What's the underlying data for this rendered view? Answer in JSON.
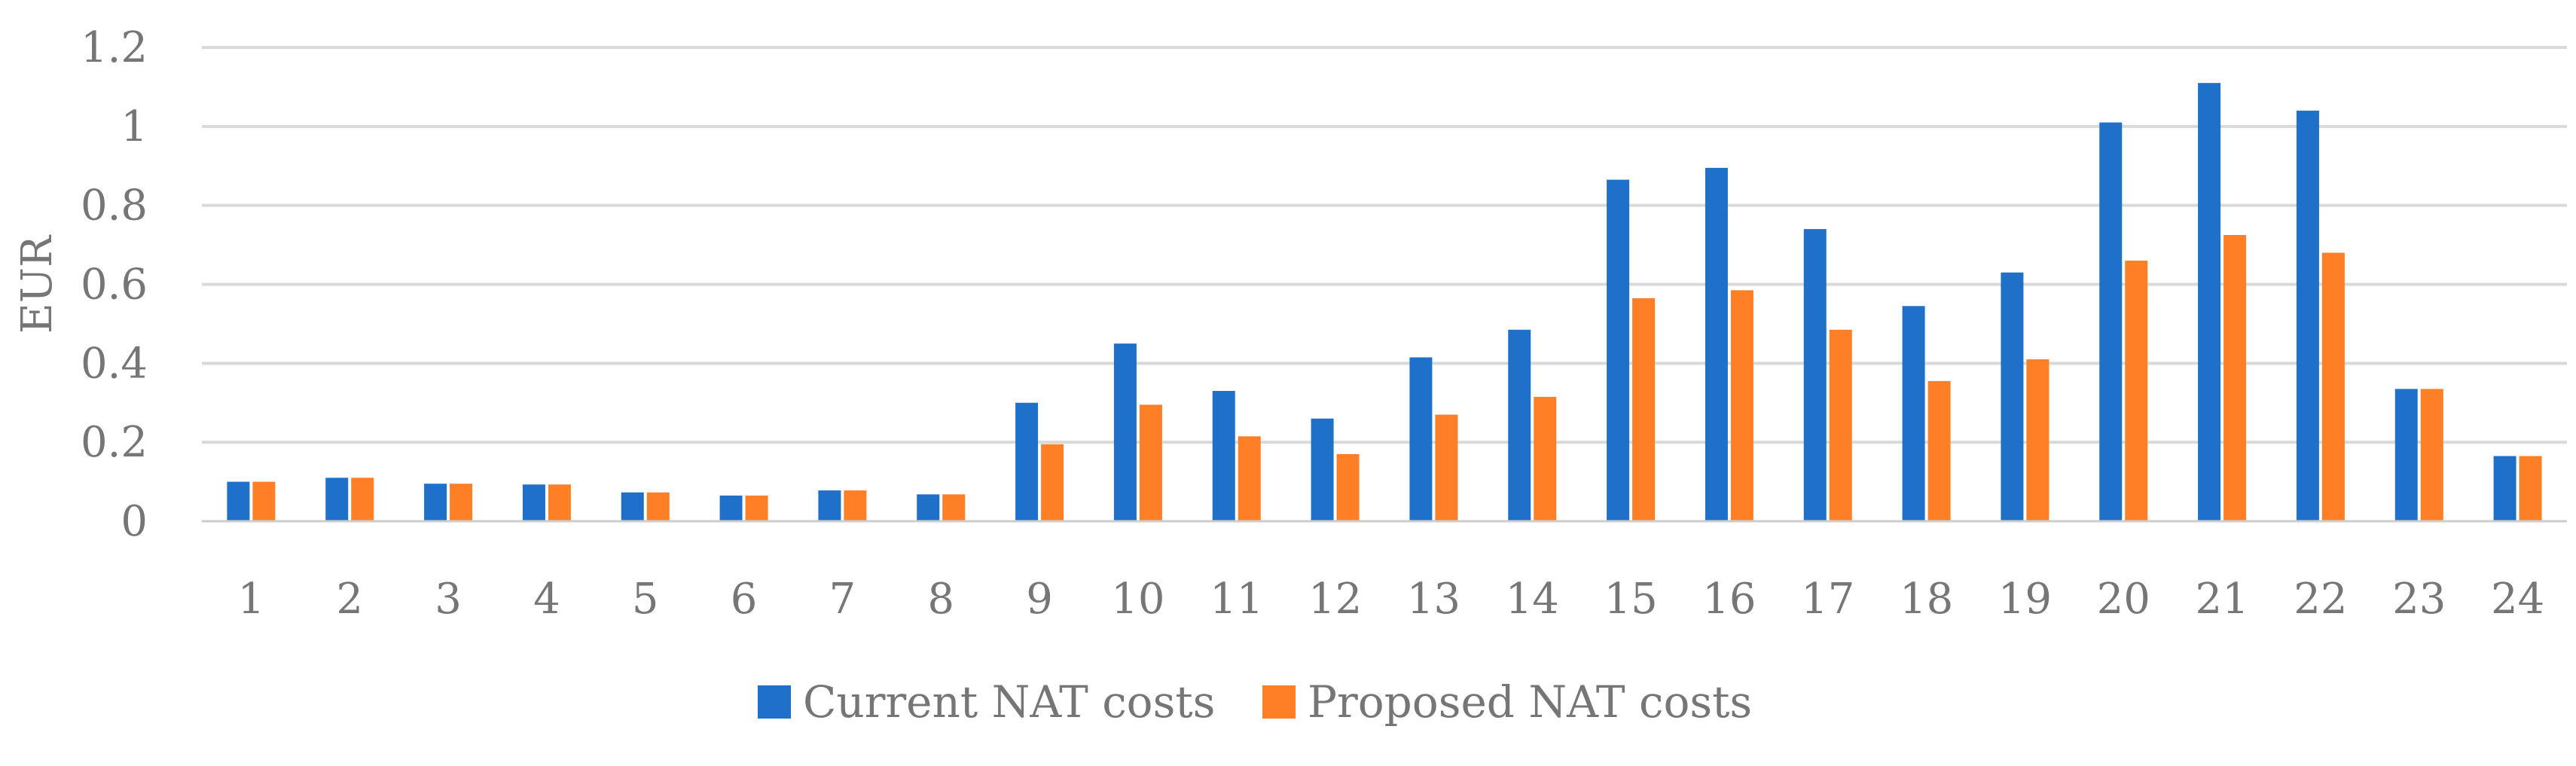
{
  "chart_data": {
    "type": "bar",
    "title": "",
    "xlabel": "",
    "ylabel": "EUR",
    "ylim": [
      0,
      1.2
    ],
    "yticks": [
      0,
      0.2,
      0.4,
      0.6,
      0.8,
      1,
      1.2
    ],
    "ytick_labels": [
      "0",
      "0.2",
      "0.4",
      "0.6",
      "0.8",
      "1",
      "1.2"
    ],
    "grid": true,
    "legend_position": "bottom",
    "categories": [
      "1",
      "2",
      "3",
      "4",
      "5",
      "6",
      "7",
      "8",
      "9",
      "10",
      "11",
      "12",
      "13",
      "14",
      "15",
      "16",
      "17",
      "18",
      "19",
      "20",
      "21",
      "22",
      "23",
      "24"
    ],
    "series": [
      {
        "name": "Current NAT costs",
        "color": "#1F70C9",
        "values": [
          0.1,
          0.11,
          0.095,
          0.093,
          0.073,
          0.065,
          0.078,
          0.068,
          0.3,
          0.45,
          0.33,
          0.26,
          0.415,
          0.485,
          0.865,
          0.895,
          0.74,
          0.545,
          0.63,
          1.01,
          1.11,
          1.04,
          0.335,
          0.165
        ]
      },
      {
        "name": "Proposed NAT costs",
        "color": "#FF7F27",
        "values": [
          0.1,
          0.11,
          0.095,
          0.093,
          0.073,
          0.065,
          0.078,
          0.068,
          0.195,
          0.295,
          0.215,
          0.17,
          0.27,
          0.315,
          0.565,
          0.585,
          0.485,
          0.355,
          0.41,
          0.66,
          0.725,
          0.68,
          0.335,
          0.165
        ]
      }
    ]
  }
}
